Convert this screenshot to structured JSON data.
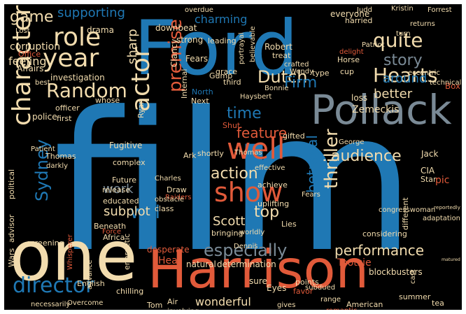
{
  "palette": {
    "blue": "#1f78b4",
    "lightblue": "#4a90c9",
    "red": "#e15a3a",
    "cream": "#f2dcae",
    "gray": "#7a8a96",
    "lightgray": "#b8c4cc",
    "background": "#000000"
  },
  "words": [
    {
      "text": "film",
      "color": "blue"
    },
    {
      "text": "Ford",
      "color": "blue"
    },
    {
      "text": "Harrison",
      "color": "red"
    },
    {
      "text": "one",
      "color": "cream"
    },
    {
      "text": "Pollack",
      "color": "gray"
    },
    {
      "text": "character",
      "color": "cream"
    },
    {
      "text": "actor",
      "color": "cream"
    },
    {
      "text": "show",
      "color": "red"
    },
    {
      "text": "well",
      "color": "red"
    },
    {
      "text": "Random",
      "color": "cream"
    },
    {
      "text": "year",
      "color": "cream"
    },
    {
      "text": "role",
      "color": "cream"
    },
    {
      "text": "Hearts",
      "color": "cream"
    },
    {
      "text": "quite",
      "color": "cream"
    },
    {
      "text": "story",
      "color": "gray"
    },
    {
      "text": "director",
      "color": "blue"
    },
    {
      "text": "especially",
      "color": "gray"
    },
    {
      "text": "performance",
      "color": "cream"
    },
    {
      "text": "thriller",
      "color": "cream"
    },
    {
      "text": "betrayal",
      "color": "blue"
    },
    {
      "text": "Sydney",
      "color": "blue"
    },
    {
      "text": "action",
      "color": "cream"
    },
    {
      "text": "audience",
      "color": "cream"
    },
    {
      "text": "premise",
      "color": "red"
    },
    {
      "text": "Dutch",
      "color": "cream"
    },
    {
      "text": "Firm",
      "color": "blue"
    },
    {
      "text": "will",
      "color": "blue"
    },
    {
      "text": "time",
      "color": "blue"
    },
    {
      "text": "top",
      "color": "cream"
    },
    {
      "text": "feature",
      "color": "red"
    },
    {
      "text": "around",
      "color": "blue"
    },
    {
      "text": "game",
      "color": "cream"
    },
    {
      "text": "supporting",
      "color": "blue"
    },
    {
      "text": "charming",
      "color": "blue"
    },
    {
      "text": "Scott",
      "color": "cream"
    },
    {
      "text": "better",
      "color": "cream"
    },
    {
      "text": "sharp",
      "color": "cream"
    },
    {
      "text": "corruption",
      "color": "cream"
    },
    {
      "text": "feeling",
      "color": "cream"
    },
    {
      "text": "subplot",
      "color": "cream"
    },
    {
      "text": "work",
      "color": "gray"
    },
    {
      "text": "wonderful",
      "color": "cream"
    },
    {
      "text": "Zemeckis",
      "color": "cream"
    },
    {
      "text": "drama",
      "color": "cream"
    },
    {
      "text": "investigation",
      "color": "cream"
    },
    {
      "text": "police",
      "color": "cream"
    },
    {
      "text": "everyone",
      "color": "cream"
    },
    {
      "text": "Kristin",
      "color": "cream"
    },
    {
      "text": "Forrest",
      "color": "cream"
    },
    {
      "text": "Clancy",
      "color": "cream"
    },
    {
      "text": "Fears",
      "color": "cream"
    },
    {
      "text": "strong",
      "color": "cream"
    },
    {
      "text": "downbeat",
      "color": "cream"
    },
    {
      "text": "leading",
      "color": "cream"
    },
    {
      "text": "grace",
      "color": "cream"
    },
    {
      "text": "third",
      "color": "cream"
    },
    {
      "text": "Robert",
      "color": "cream"
    },
    {
      "text": "treat",
      "color": "cream"
    },
    {
      "text": "Horse",
      "color": "cream"
    },
    {
      "text": "cup",
      "color": "cream"
    },
    {
      "text": "portrayal",
      "color": "cream"
    },
    {
      "text": "believable",
      "color": "cream"
    },
    {
      "text": "type",
      "color": "cream"
    },
    {
      "text": "loss",
      "color": "cream"
    },
    {
      "text": "Internal",
      "color": "cream"
    },
    {
      "text": "Affairs",
      "color": "cream"
    },
    {
      "text": "Office",
      "color": "red"
    },
    {
      "text": "Patient",
      "color": "cream"
    },
    {
      "text": "Thomas",
      "color": "cream"
    },
    {
      "text": "darkly",
      "color": "cream"
    },
    {
      "text": "first",
      "color": "cream"
    },
    {
      "text": "officer",
      "color": "cream"
    },
    {
      "text": "Fugitive",
      "color": "cream"
    },
    {
      "text": "complex",
      "color": "cream"
    },
    {
      "text": "Ryan",
      "color": "cream"
    },
    {
      "text": "Gump",
      "color": "cream"
    },
    {
      "text": "Next",
      "color": "cream"
    },
    {
      "text": "North",
      "color": "blue"
    },
    {
      "text": "Haysbert",
      "color": "cream"
    },
    {
      "text": "Bonnie",
      "color": "cream"
    },
    {
      "text": "Ark",
      "color": "cream"
    },
    {
      "text": "shortly",
      "color": "cream"
    },
    {
      "text": "Thomas",
      "color": "cream"
    },
    {
      "text": "Shut",
      "color": "red"
    },
    {
      "text": "Jack",
      "color": "cream"
    },
    {
      "text": "George",
      "color": "cream"
    },
    {
      "text": "gifted",
      "color": "cream"
    },
    {
      "text": "effective",
      "color": "cream"
    },
    {
      "text": "CIA",
      "color": "cream"
    },
    {
      "text": "Star",
      "color": "cream"
    },
    {
      "text": "Future",
      "color": "cream"
    },
    {
      "text": "Charles",
      "color": "cream"
    },
    {
      "text": "release",
      "color": "cream"
    },
    {
      "text": "Draw",
      "color": "cream"
    },
    {
      "text": "Raiders",
      "color": "red"
    },
    {
      "text": "educated",
      "color": "cream"
    },
    {
      "text": "class",
      "color": "cream"
    },
    {
      "text": "obstacle",
      "color": "cream"
    },
    {
      "text": "achieve",
      "color": "cream"
    },
    {
      "text": "Beneath",
      "color": "cream"
    },
    {
      "text": "Force",
      "color": "red"
    },
    {
      "text": "Africa",
      "color": "cream"
    },
    {
      "text": "bringing",
      "color": "cream"
    },
    {
      "text": "Lies",
      "color": "cream"
    },
    {
      "text": "uplifting",
      "color": "cream"
    },
    {
      "text": "Dennis",
      "color": "cream"
    },
    {
      "text": "worldly",
      "color": "cream"
    },
    {
      "text": "considering",
      "color": "cream"
    },
    {
      "text": "congresswoman",
      "color": "cream"
    },
    {
      "text": "adaptation",
      "color": "cream"
    },
    {
      "text": "reportedly",
      "color": "cream"
    },
    {
      "text": "different",
      "color": "cream"
    },
    {
      "text": "matured",
      "color": "cream"
    },
    {
      "text": "pic",
      "color": "red"
    },
    {
      "text": "Box",
      "color": "red"
    },
    {
      "text": "technical",
      "color": "cream"
    },
    {
      "text": "Wars",
      "color": "cream"
    },
    {
      "text": "advisor",
      "color": "cream"
    },
    {
      "text": "political",
      "color": "cream"
    },
    {
      "text": "screening",
      "color": "cream"
    },
    {
      "text": "desperate",
      "color": "red"
    },
    {
      "text": "energetic",
      "color": "cream"
    },
    {
      "text": "English",
      "color": "cream"
    },
    {
      "text": "Whisperer",
      "color": "red"
    },
    {
      "text": "advance",
      "color": "cream"
    },
    {
      "text": "chilling",
      "color": "cream"
    },
    {
      "text": "natural",
      "color": "cream"
    },
    {
      "text": "determination",
      "color": "cream"
    },
    {
      "text": "Heat",
      "color": "red"
    },
    {
      "text": "Tootsie",
      "color": "red"
    },
    {
      "text": "blockbusters",
      "color": "cream"
    },
    {
      "text": "sure",
      "color": "cream"
    },
    {
      "text": "Eyes",
      "color": "cream"
    },
    {
      "text": "points",
      "color": "cream"
    },
    {
      "text": "favor",
      "color": "red"
    },
    {
      "text": "range",
      "color": "cream"
    },
    {
      "text": "American",
      "color": "cream"
    },
    {
      "text": "summer",
      "color": "cream"
    },
    {
      "text": "tea",
      "color": "cream"
    },
    {
      "text": "Tom",
      "color": "cream"
    },
    {
      "text": "Air",
      "color": "cream"
    },
    {
      "text": "necessarily",
      "color": "cream"
    },
    {
      "text": "Overcome",
      "color": "cream"
    },
    {
      "text": "gives",
      "color": "cream"
    },
    {
      "text": "romantic",
      "color": "red"
    },
    {
      "text": "overdue",
      "color": "cream"
    },
    {
      "text": "harried",
      "color": "cream"
    },
    {
      "text": "Lost",
      "color": "cream"
    },
    {
      "text": "cast",
      "color": "cream"
    },
    {
      "text": "crafted",
      "color": "cream"
    },
    {
      "text": "Patriot",
      "color": "cream"
    },
    {
      "text": "Judd",
      "color": "cream"
    },
    {
      "text": "Wendy",
      "color": "cream"
    },
    {
      "text": "subdued",
      "color": "cream"
    },
    {
      "text": "Fears",
      "color": "cream"
    },
    {
      "text": "involving",
      "color": "cream"
    },
    {
      "text": "returns",
      "color": "cream"
    },
    {
      "text": "turn",
      "color": "cream"
    },
    {
      "text": "delight",
      "color": "red"
    },
    {
      "text": "eccentric",
      "color": "cream"
    },
    {
      "text": "best",
      "color": "cream"
    },
    {
      "text": "whose",
      "color": "cream"
    }
  ]
}
